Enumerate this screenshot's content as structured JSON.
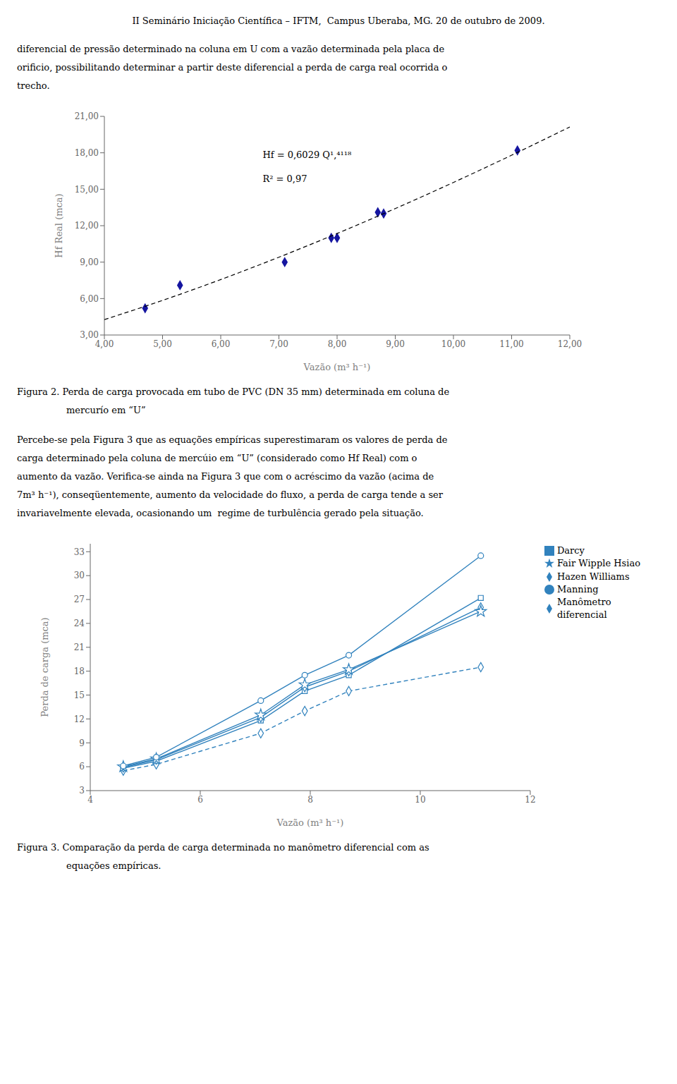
{
  "header": "II Seminário Iniciação Científica – IFTM,  Campus Uberaba, MG. 20 de outubro de 2009.",
  "chart_data": [
    {
      "type": "scatter",
      "text_before": [
        "diferencial de pressão determinado na coluna em U com a vazão determinada pela placa de",
        "orificio, possibilitando determinar a partir deste diferencial a perda de carga real ocorrida o",
        "trecho."
      ],
      "x_label": "Vazão (m³ h⁻¹)",
      "y_label": "Hf Real (mca)",
      "xlim": [
        4.0,
        12.0
      ],
      "ylim": [
        3.0,
        21.0
      ],
      "xticks": [
        {
          "value": 4.0,
          "label": "4,00"
        },
        {
          "value": 5.0,
          "label": "5,00"
        },
        {
          "value": 6.0,
          "label": "6,00"
        },
        {
          "value": 7.0,
          "label": "7,00"
        },
        {
          "value": 8.0,
          "label": "8,00"
        },
        {
          "value": 9.0,
          "label": "9,00"
        },
        {
          "value": 10.0,
          "label": "10,00"
        },
        {
          "value": 11.0,
          "label": "11,00"
        },
        {
          "value": 12.0,
          "label": "12,00"
        }
      ],
      "yticks": [
        {
          "value": 3.0,
          "label": "3,00"
        },
        {
          "value": 6.0,
          "label": "6,00"
        },
        {
          "value": 9.0,
          "label": "9,00"
        },
        {
          "value": 12.0,
          "label": "12,00"
        },
        {
          "value": 15.0,
          "label": "15,00"
        },
        {
          "value": 18.0,
          "label": "18,00"
        },
        {
          "value": 21.0,
          "label": "21,00"
        }
      ],
      "grid": false,
      "series": [
        {
          "type": "scatter",
          "marker": "diamond",
          "color": "#1515a0",
          "x": [
            4.7,
            5.3,
            7.1,
            7.9,
            8.0,
            8.7,
            8.8,
            11.1
          ],
          "values": [
            5.2,
            7.1,
            9.0,
            11.0,
            11.0,
            13.1,
            13.0,
            18.2
          ]
        },
        {
          "type": "line",
          "line_style": "dashed",
          "color": "#000000",
          "x": [
            4,
            5,
            6,
            7,
            8,
            9,
            10,
            11,
            12
          ],
          "values": [
            4.268,
            5.849,
            7.566,
            9.405,
            11.356,
            13.411,
            15.561,
            17.803,
            20.13
          ]
        }
      ],
      "annotations": [
        "Hf = 0,6029 Q¹,⁴¹¹⁸",
        "R² = 0,97"
      ],
      "caption": [
        "Figura 2. Perda de carga provocada em tubo de PVC (DN 35 mm) determinada em coluna de",
        "mercurío em “U”"
      ]
    },
    {
      "type": "line",
      "text_before": [
        "Percebe-se pela Figura 3 que as equações empíricas superestimaram os valores de perda de",
        "carga determinado pela coluna de mercúio em “U” (considerado como Hf Real) com o",
        "aumento da vazão. Verifica-se ainda na Figura 3 que com o acréscimo da vazão (acima de",
        "7m³ h⁻¹), conseqüentemente, aumento da velocidade do fluxo, a perda de carga tende a ser",
        "invariavelmente elevada, ocasionando um  regime de turbulência gerado pela situação."
      ],
      "x_label": "Vazão (m³ h⁻¹)",
      "y_label": "Perda de carga (mca)",
      "xlim": [
        4.0,
        12.0
      ],
      "ylim": [
        3.0,
        34.0
      ],
      "xticks": [
        4,
        6,
        8,
        10,
        12
      ],
      "yticks": [
        3,
        6,
        9,
        12,
        15,
        18,
        21,
        24,
        27,
        30,
        33
      ],
      "grid": false,
      "legend": "right",
      "x": [
        4.6,
        5.2,
        7.1,
        7.9,
        8.7,
        11.1
      ],
      "series": [
        {
          "name": "Manômetro\ndiferencial",
          "marker": "diamond",
          "line_style": "dashed",
          "values": [
            5.5,
            6.3,
            10.2,
            13.0,
            15.5,
            18.5
          ]
        },
        {
          "name": "Darcy",
          "marker": "square",
          "line_style": "solid",
          "values": [
            5.8,
            6.7,
            11.8,
            15.5,
            17.5,
            27.2
          ]
        },
        {
          "name": "Hazen Williams",
          "marker": "diamond",
          "line_style": "solid",
          "values": [
            5.9,
            6.9,
            12.2,
            16.0,
            18.0,
            26.0
          ]
        },
        {
          "name": "Fair Wipple Hsiao",
          "marker": "star",
          "line_style": "solid",
          "values": [
            6.0,
            7.0,
            12.5,
            16.3,
            18.2,
            25.5
          ]
        },
        {
          "name": "Manning",
          "marker": "circle",
          "line_style": "solid",
          "values": [
            6.1,
            7.2,
            14.3,
            17.5,
            20.0,
            32.5
          ]
        }
      ],
      "caption": [
        "Figura 3. Comparação da perda de carga determinada no manômetro diferencial com as",
        "equações empíricas."
      ]
    }
  ]
}
